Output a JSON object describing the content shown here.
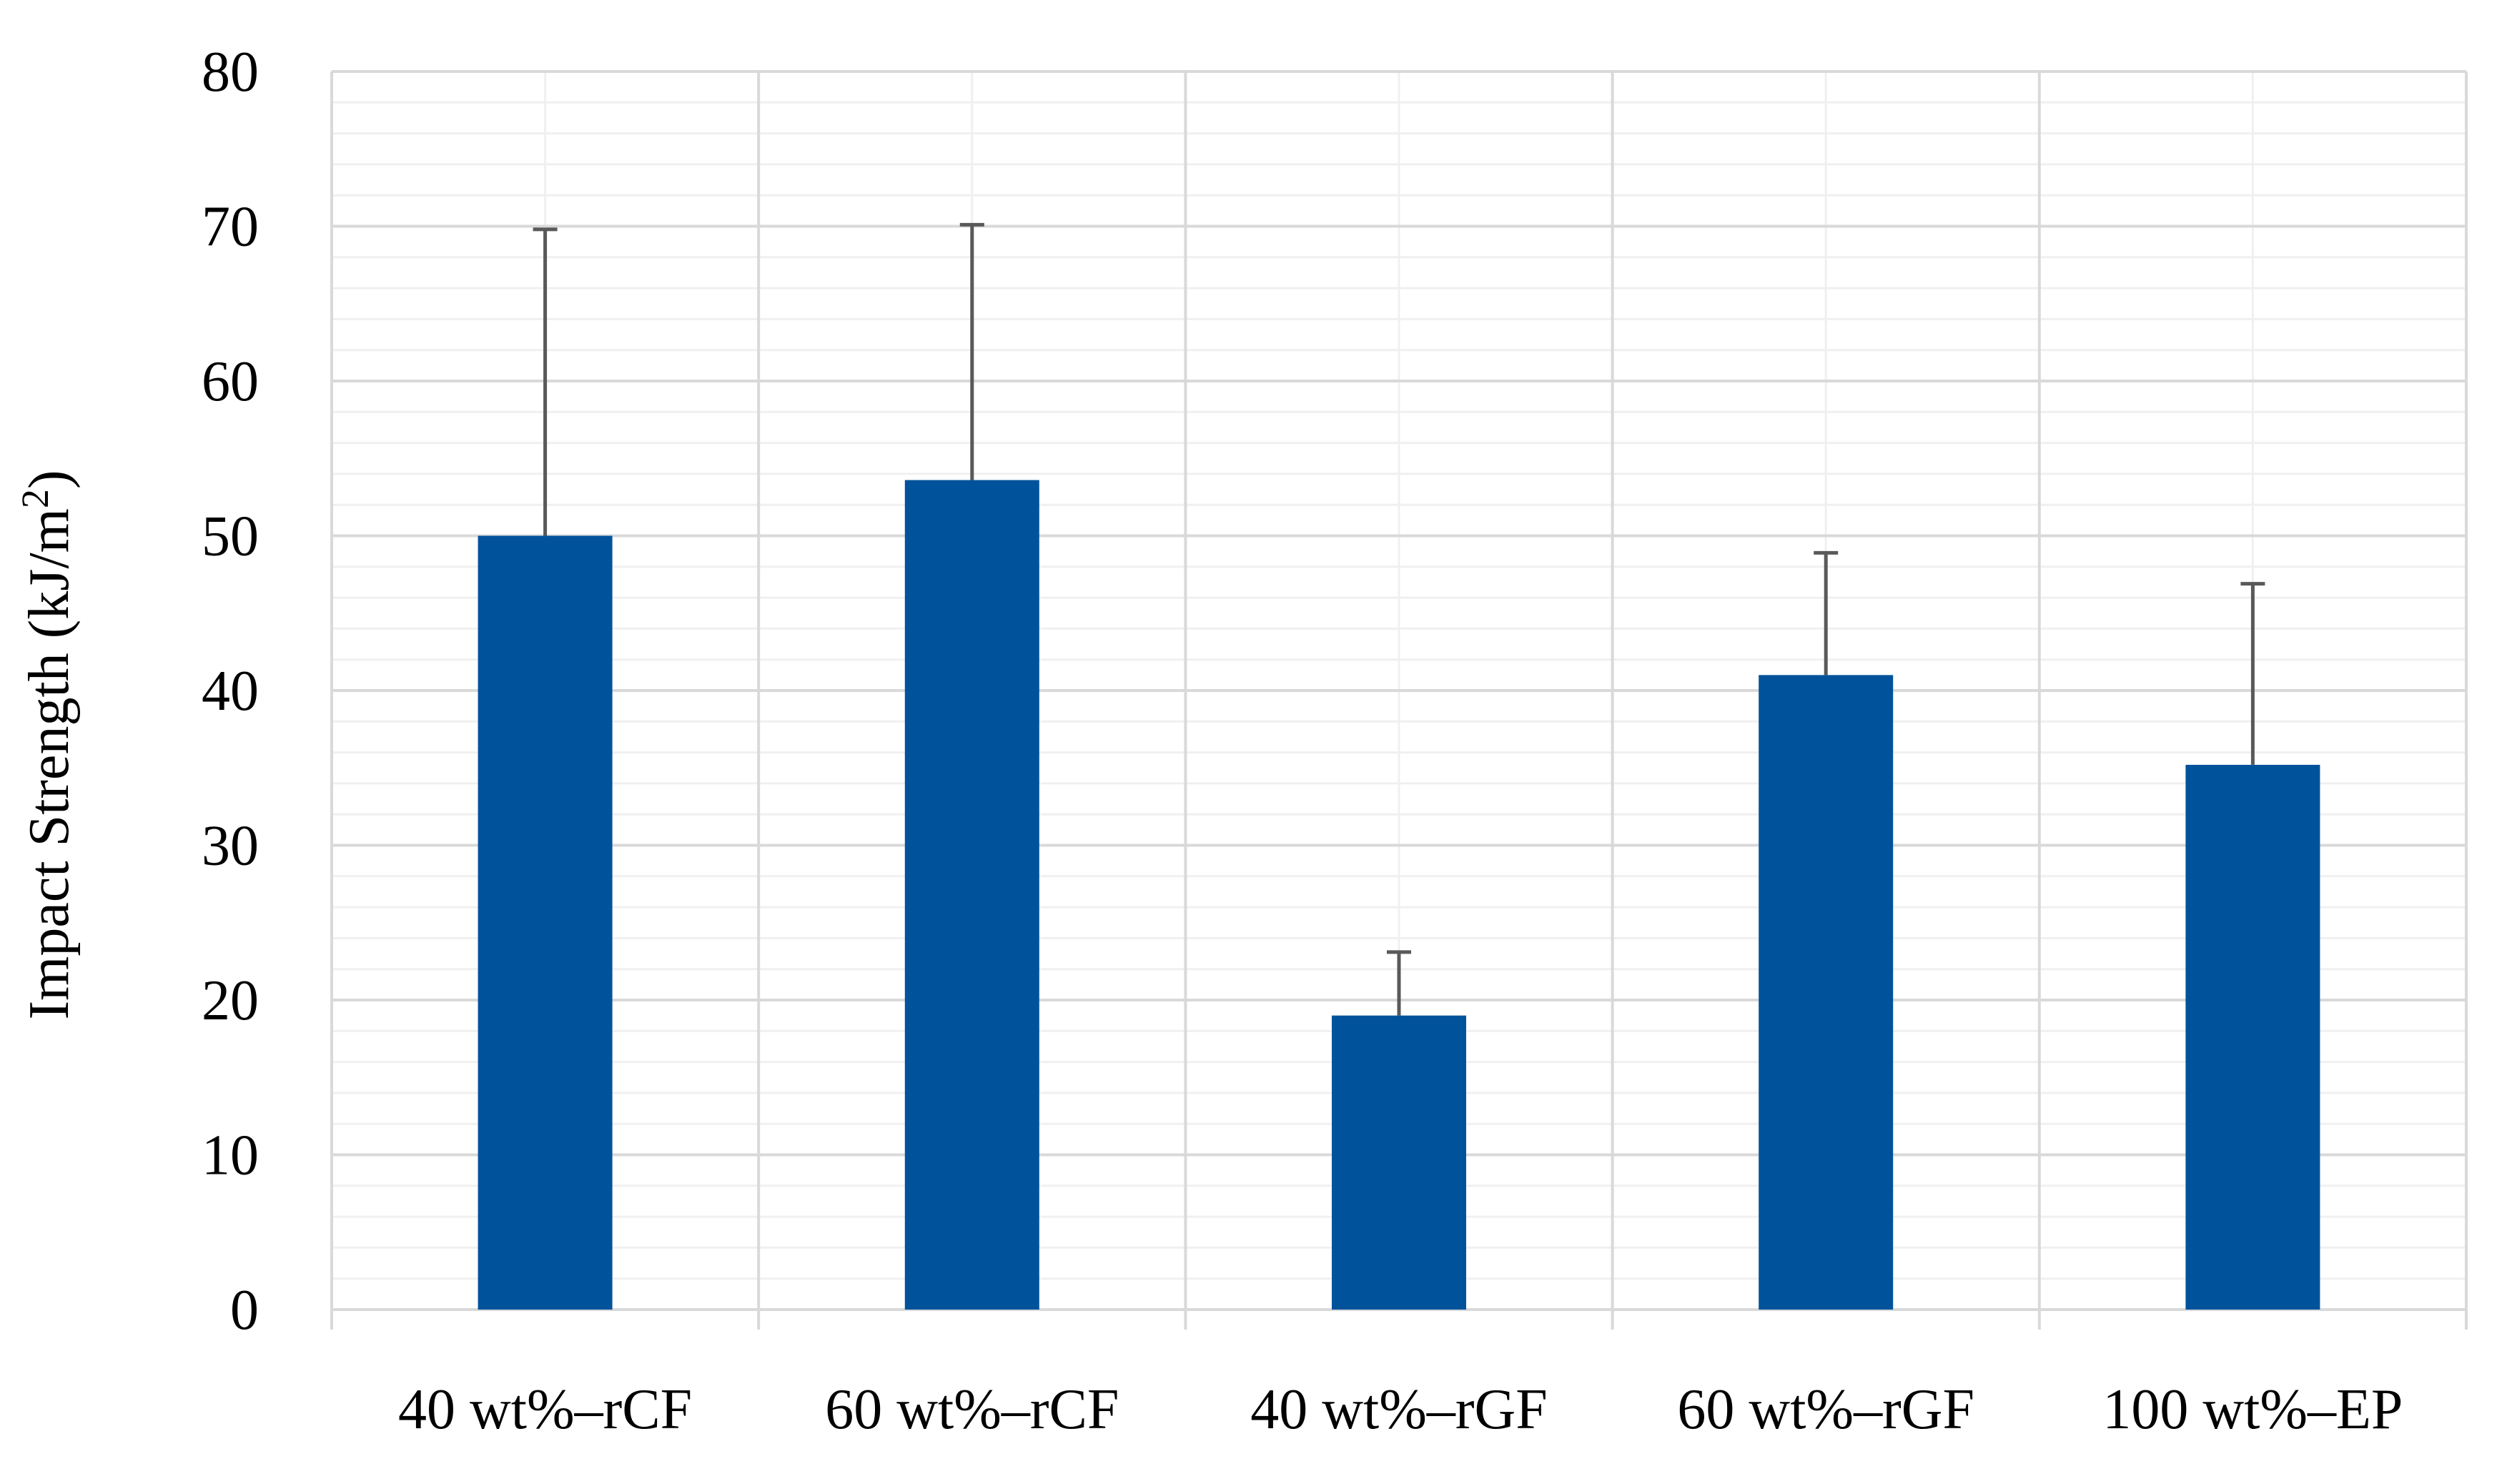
{
  "chart_data": {
    "type": "bar",
    "title": "",
    "xlabel": "",
    "ylabel": "Impact Strength (kJ/m²)",
    "ylabel_parts": {
      "before": "Impact Strength (kJ/m",
      "superscript": "2",
      "after": ")"
    },
    "categories": [
      "40 wt%–rCF",
      "60 wt%–rCF",
      "40 wt%–rGF",
      "60 wt%–rGF",
      "100 wt%–EP"
    ],
    "values": [
      50.0,
      53.6,
      19.0,
      41.0,
      35.2
    ],
    "error_plus": [
      19.8,
      16.5,
      4.1,
      7.9,
      11.7
    ],
    "ylim": [
      0,
      80
    ],
    "yticks": [
      0,
      10,
      20,
      30,
      40,
      50,
      60,
      70,
      80
    ],
    "major_grid": true,
    "minor_grid": true,
    "minor_step": 2,
    "legend": "none",
    "colors": {
      "bar": "#00539B",
      "error_bar": "#595959",
      "major_grid": "#D9D9D9",
      "minor_grid": "#F0F0F0",
      "axis": "#D9D9D9"
    }
  }
}
